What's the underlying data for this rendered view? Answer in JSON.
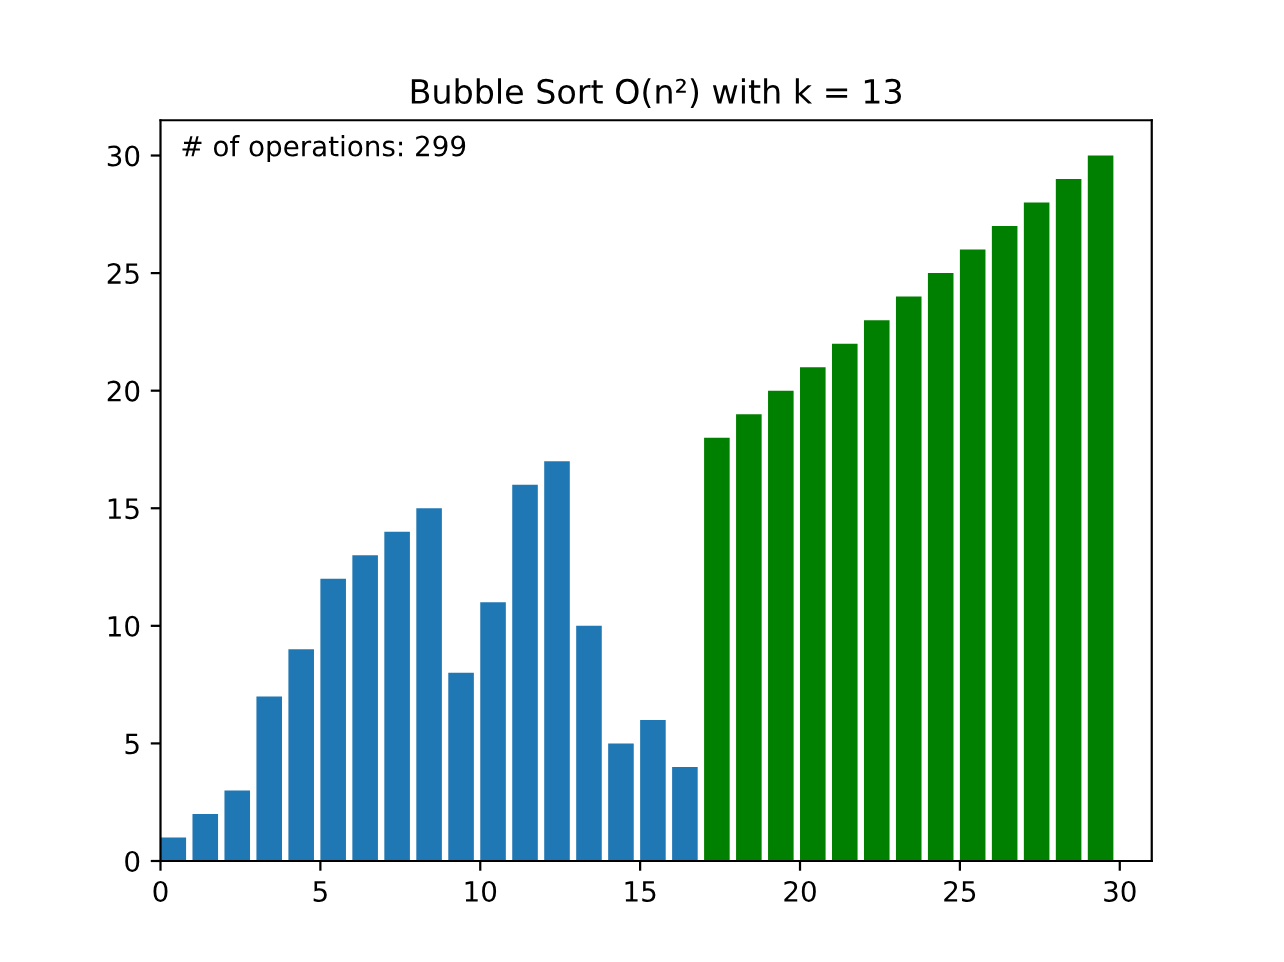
{
  "chart_data": {
    "type": "bar",
    "title": "Bubble Sort O(n²) with k = 13",
    "annotations": [
      "# of operations: 299"
    ],
    "series": [
      {
        "color": "#1f77b4",
        "x": [
          0.4,
          1.4,
          2.4,
          3.4,
          4.4,
          5.4,
          6.4,
          7.4,
          8.4,
          9.4,
          10.4,
          11.4,
          12.4,
          13.4,
          14.4,
          15.4,
          16.4
        ],
        "values": [
          1,
          2,
          3,
          7,
          9,
          12,
          13,
          14,
          15,
          8,
          11,
          16,
          17,
          10,
          5,
          6,
          4
        ]
      },
      {
        "color": "#008000",
        "x": [
          17.4,
          18.4,
          19.4,
          20.4,
          21.4,
          22.4,
          23.4,
          24.4,
          25.4,
          26.4,
          27.4,
          28.4,
          29.4
        ],
        "values": [
          18,
          19,
          20,
          21,
          22,
          23,
          24,
          25,
          26,
          27,
          28,
          29,
          30
        ]
      }
    ],
    "xlim": [
      0,
      31
    ],
    "xticks": [
      0,
      5,
      10,
      15,
      20,
      25,
      30
    ],
    "ylim": [
      0,
      31.5
    ],
    "yticks": [
      0,
      5,
      10,
      15,
      20,
      25,
      30
    ],
    "grid": false
  }
}
